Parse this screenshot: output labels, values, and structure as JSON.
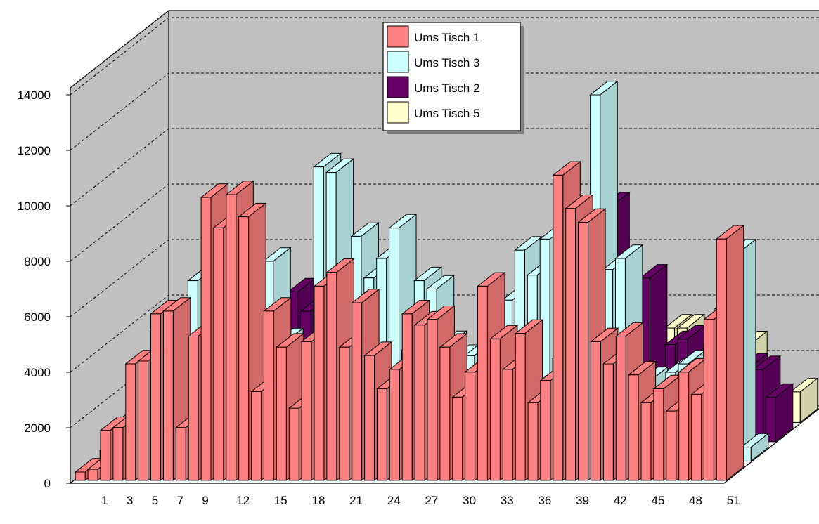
{
  "chart_data": {
    "type": "bar",
    "subtype": "3d-bar-depth",
    "title": "",
    "xlabel": "",
    "ylabel": "",
    "ylim": [
      0,
      14000
    ],
    "yticks": [
      0,
      2000,
      4000,
      6000,
      8000,
      10000,
      12000,
      14000
    ],
    "grid": true,
    "legend_position": "top-center",
    "x_tick_labels": [
      "1",
      "3",
      "5",
      "7",
      "9",
      "12",
      "15",
      "18",
      "21",
      "24",
      "27",
      "30",
      "33",
      "36",
      "39",
      "42",
      "45",
      "48",
      "51"
    ],
    "categories": [
      1,
      2,
      3,
      4,
      5,
      6,
      7,
      8,
      9,
      10,
      11,
      12,
      13,
      14,
      15,
      16,
      17,
      18,
      19,
      20,
      21,
      22,
      23,
      24,
      25,
      26,
      27,
      28,
      29,
      30,
      31,
      32,
      33,
      34,
      35,
      36,
      37,
      38,
      39,
      40,
      41,
      42,
      43,
      44,
      45,
      46,
      47,
      48,
      49,
      50,
      51,
      52
    ],
    "series": [
      {
        "name": "Ums Tisch 1",
        "color": "#ff8080",
        "values": [
          300,
          400,
          1800,
          1900,
          4200,
          4300,
          6000,
          6100,
          1900,
          5200,
          10200,
          9100,
          10300,
          9500,
          3200,
          6100,
          4800,
          2600,
          5000,
          7000,
          7500,
          4800,
          6400,
          4500,
          3300,
          4000,
          6000,
          5600,
          5800,
          4800,
          3000,
          3900,
          7000,
          5100,
          4000,
          5300,
          2800,
          3600,
          11000,
          9800,
          9300,
          5000,
          4200,
          5200,
          3800,
          2800,
          3300,
          2500,
          3900,
          3100,
          5800,
          8700
        ]
      },
      {
        "name": "Ums Tisch 3",
        "color": "#ccffff",
        "values": [
          400,
          1300,
          1600,
          3100,
          4800,
          1800,
          2900,
          6500,
          1100,
          1900,
          5300,
          2500,
          4700,
          7200,
          4300,
          3600,
          4000,
          10600,
          10400,
          1200,
          8100,
          6600,
          7300,
          8400,
          4000,
          6500,
          6200,
          4200,
          3700,
          3800,
          3300,
          3300,
          5800,
          7600,
          6700,
          8000,
          3700,
          2000,
          4200,
          13200,
          6900,
          7300,
          1500,
          2900,
          2300,
          3200,
          3500,
          1900,
          4200,
          2800,
          7500,
          500
        ]
      },
      {
        "name": "Ums Tisch 2",
        "color": "#660066",
        "values": [
          100,
          200,
          1500,
          1600,
          1200,
          3200,
          3300,
          2900,
          4500,
          5200,
          5300,
          1000,
          4900,
          5400,
          4700,
          4900,
          1800,
          1200,
          5000,
          2500,
          5100,
          3600,
          3700,
          3800,
          4100,
          2700,
          2500,
          2100,
          3100,
          2800,
          3800,
          3900,
          3400,
          2500,
          2300,
          4200,
          7200,
          8100,
          8500,
          3700,
          5200,
          5900,
          2200,
          3500,
          3700,
          900,
          1800,
          3100,
          3200,
          2700,
          2600,
          1600
        ]
      },
      {
        "name": "Ums Tisch 5",
        "color": "#ffffcc",
        "values": [
          300,
          900,
          100,
          1200,
          1400,
          1800,
          1800,
          800,
          1600,
          1800,
          300,
          2900,
          300,
          1500,
          3000,
          1100,
          2600,
          2200,
          1500,
          1600,
          2400,
          500,
          2600,
          1200,
          700,
          1100,
          900,
          1000,
          2100,
          2100,
          2200,
          1700,
          300,
          1100,
          1400,
          1000,
          2000,
          1500,
          1400,
          1100,
          2200,
          3400,
          3400,
          1300,
          1500,
          4100,
          4300,
          2800,
          300,
          400,
          100,
          1100
        ]
      }
    ]
  },
  "legend": {
    "items": [
      {
        "label": "Ums Tisch 1",
        "color": "#ff8080"
      },
      {
        "label": "Ums Tisch 3",
        "color": "#ccffff"
      },
      {
        "label": "Ums Tisch 2",
        "color": "#660066"
      },
      {
        "label": "Ums Tisch 5",
        "color": "#ffffcc"
      }
    ]
  },
  "colors": {
    "wall": "#c0c0c0",
    "floor": "#ffffff",
    "edge": "#000000"
  }
}
